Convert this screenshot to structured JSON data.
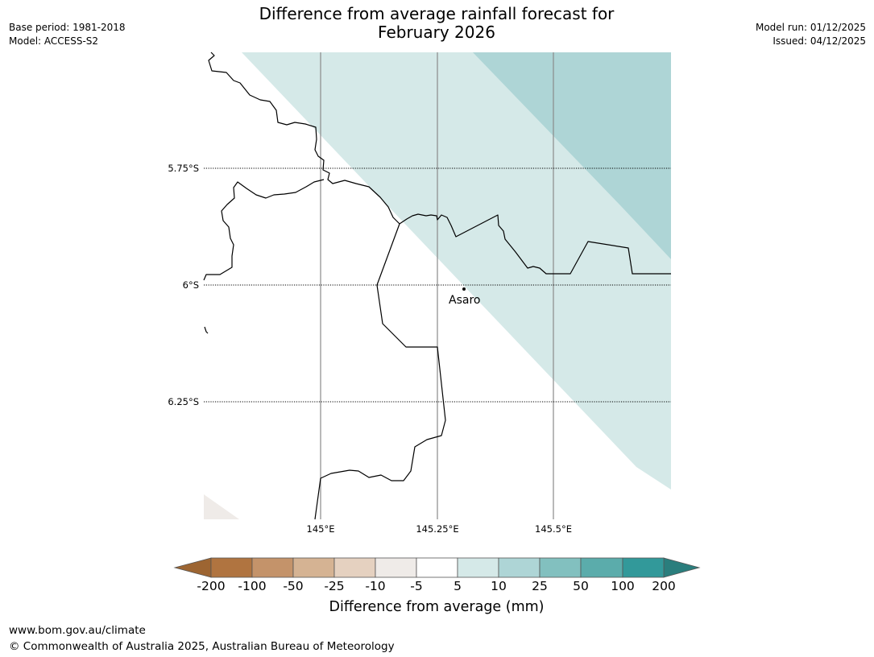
{
  "header": {
    "title_line1": "Difference from average rainfall forecast for",
    "title_line2": "February 2026",
    "base_period": "Base period: 1981-2018",
    "model": "Model: ACCESS-S2",
    "model_run": "Model run: 01/12/2025",
    "issued": "Issued: 04/12/2025"
  },
  "map": {
    "lat_labels": [
      "5.75°S",
      "6°S",
      "6.25°S"
    ],
    "lon_labels": [
      "145°E",
      "145.25°E",
      "145.5°E"
    ],
    "place": "Asaro"
  },
  "colorbar": {
    "title": "Difference from average (mm)",
    "ticks": [
      "-200",
      "-100",
      "-50",
      "-25",
      "-10",
      "-5",
      "5",
      "10",
      "25",
      "50",
      "100",
      "200"
    ],
    "colors": [
      "#9d6532",
      "#b07440",
      "#c4936a",
      "#d5b393",
      "#e5d1c0",
      "#efebe8",
      "#ffffff",
      "#d5e9e8",
      "#aed5d6",
      "#82c0bf",
      "#5bacab",
      "#32999a",
      "#2a7e7d"
    ]
  },
  "footer": {
    "url": "www.bom.gov.au/climate",
    "copyright": "© Commonwealth of Australia 2025, Australian Bureau of Meteorology"
  }
}
